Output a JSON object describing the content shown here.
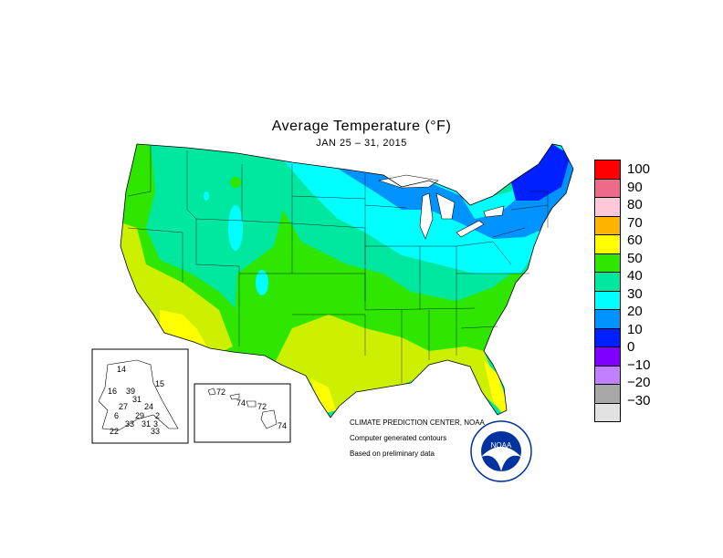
{
  "title": "Average Temperature (°F)",
  "subtitle": "JAN 25 – 31, 2015",
  "legend": {
    "items": [
      {
        "label": "100",
        "color": "#ff0000"
      },
      {
        "label": "90",
        "color": "#ee6a8a"
      },
      {
        "label": "80",
        "color": "#ffc8d8"
      },
      {
        "label": "70",
        "color": "#ffb400"
      },
      {
        "label": "60",
        "color": "#ffff00"
      },
      {
        "label": "50",
        "color": "#2ee600"
      },
      {
        "label": "40",
        "color": "#00e8a0"
      },
      {
        "label": "30",
        "color": "#00ffff"
      },
      {
        "label": "20",
        "color": "#0092ff"
      },
      {
        "label": "10",
        "color": "#0020ff"
      },
      {
        "label": "0",
        "color": "#8000ff"
      },
      {
        "label": "−10",
        "color": "#c080ff"
      },
      {
        "label": "−20",
        "color": "#a8a8a8"
      },
      {
        "label": "−30",
        "color": "#e2e2e2"
      }
    ]
  },
  "credits": {
    "line1": "CLIMATE PREDICTION CENTER, NOAA",
    "line2": "Computer generated contours",
    "line3": "Based on preliminary data"
  },
  "alaska_values": [
    "14",
    "15",
    "16",
    "39",
    "31",
    "27",
    "24",
    "6",
    "29",
    "2",
    "33",
    "31",
    "3",
    "33",
    "22"
  ],
  "hawaii_values": [
    "72",
    "74",
    "72",
    "74"
  ],
  "logo": {
    "text": "NOAA",
    "ring_text": "NATIONAL OCEANIC AND ATMOSPHERIC ADMINISTRATION • U.S. DEPARTMENT OF COMMERCE"
  }
}
